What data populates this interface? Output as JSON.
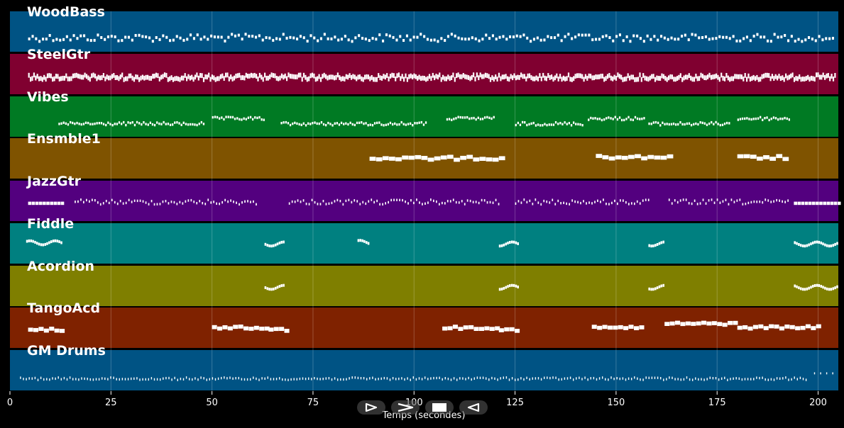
{
  "tracks": [
    {
      "name": "WoodBass",
      "color": "#005384",
      "style": "bass"
    },
    {
      "name": "SteelGtr",
      "color": "#800030",
      "style": "dense"
    },
    {
      "name": "Vibes",
      "color": "#007a23",
      "style": "vibes"
    },
    {
      "name": "Ensmble1",
      "color": "#7f5300",
      "style": "ensemble"
    },
    {
      "name": "JazzGtr",
      "color": "#53007f",
      "style": "jazz"
    },
    {
      "name": "Fiddle",
      "color": "#008080",
      "style": "fiddle"
    },
    {
      "name": "Acordion",
      "color": "#7f7f00",
      "style": "accordion"
    },
    {
      "name": "TangoAcd",
      "color": "#7f2200",
      "style": "tango"
    },
    {
      "name": "GM Drums",
      "color": "#005384",
      "style": "drums"
    }
  ],
  "axis": {
    "min": 0,
    "max": 205,
    "ticks": [
      0,
      25,
      50,
      75,
      100,
      125,
      150,
      175,
      200
    ],
    "label": "Temps (secondes)"
  },
  "controls": [
    {
      "name": "play-button",
      "icon": "play-outline-icon"
    },
    {
      "name": "forward-button",
      "icon": "chevron-right-icon"
    },
    {
      "name": "stop-button",
      "icon": "stop-icon"
    },
    {
      "name": "rewind-button",
      "icon": "rewind-outline-icon"
    }
  ]
}
